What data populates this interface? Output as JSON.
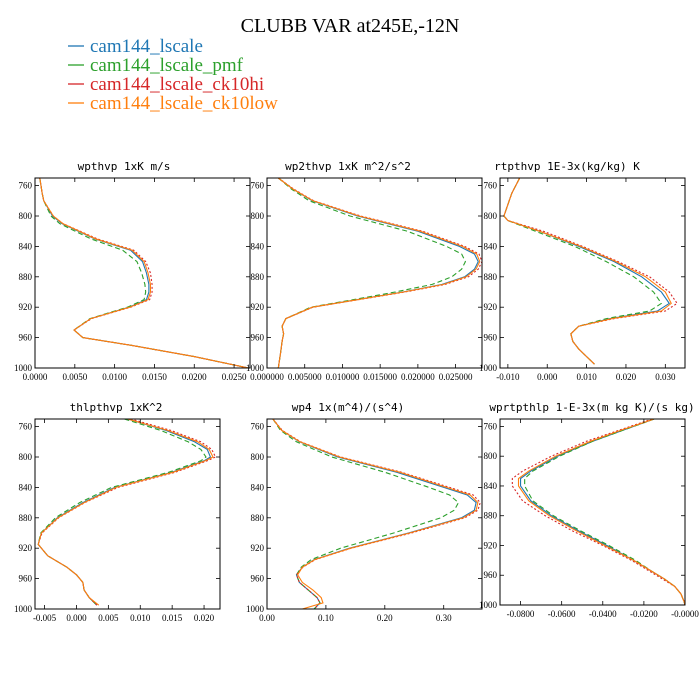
{
  "figure": {
    "title": "CLUBB VAR at245E,-12N"
  },
  "legend": [
    {
      "label": "cam144_lscale",
      "color": "#1f77b4",
      "dash": "solid"
    },
    {
      "label": "cam144_lscale_pmf",
      "color": "#2ca02c",
      "dash": "dashed"
    },
    {
      "label": "cam144_lscale_ck10hi",
      "color": "#d62728",
      "dash": "dotted"
    },
    {
      "label": "cam144_lscale_ck10low",
      "color": "#ff7f0e",
      "dash": "solid"
    }
  ],
  "chart_data": [
    {
      "type": "line",
      "title": "wpthvp  1xK m/s",
      "xlim": [
        0,
        0.027
      ],
      "ylim": [
        1000,
        750
      ],
      "y_reversed": true,
      "xticks": [
        0,
        0.005,
        0.01,
        0.015,
        0.02,
        0.025
      ],
      "xtick_labels": [
        "0.0000",
        "0.0050",
        "0.0100",
        "0.0150",
        "0.0200",
        "0.0250"
      ],
      "yticks": [
        760,
        800,
        840,
        880,
        920,
        960,
        1000
      ],
      "ytick_labels": [
        "760",
        "800",
        "840",
        "880",
        "920",
        "960",
        "1000"
      ],
      "y": [
        750,
        770,
        780,
        800,
        810,
        830,
        845,
        860,
        875,
        890,
        900,
        910,
        920,
        935,
        950,
        960,
        970,
        985,
        1000
      ],
      "series": [
        {
          "name": "cam144_lscale",
          "values": [
            0.0006,
            0.0009,
            0.0011,
            0.0022,
            0.0034,
            0.0075,
            0.012,
            0.0135,
            0.014,
            0.0143,
            0.0143,
            0.014,
            0.0118,
            0.007,
            0.0049,
            0.006,
            0.012,
            0.02,
            0.0268
          ]
        },
        {
          "name": "cam144_lscale_pmf",
          "values": [
            0.0006,
            0.0009,
            0.0011,
            0.002,
            0.0031,
            0.007,
            0.011,
            0.0128,
            0.0134,
            0.0138,
            0.0139,
            0.0137,
            0.0116,
            0.0069,
            0.0049,
            0.006,
            0.012,
            0.02,
            0.0268
          ]
        },
        {
          "name": "cam144_lscale_ck10hi",
          "values": [
            0.0006,
            0.0009,
            0.0011,
            0.0023,
            0.0035,
            0.0078,
            0.0124,
            0.0139,
            0.0145,
            0.0147,
            0.0147,
            0.0144,
            0.012,
            0.0071,
            0.0049,
            0.006,
            0.012,
            0.02,
            0.0268
          ]
        },
        {
          "name": "cam144_lscale_ck10low",
          "values": [
            0.0006,
            0.0009,
            0.0011,
            0.0023,
            0.0035,
            0.0076,
            0.0122,
            0.0137,
            0.0142,
            0.0145,
            0.0145,
            0.0142,
            0.0119,
            0.007,
            0.0049,
            0.006,
            0.012,
            0.02,
            0.0268
          ]
        }
      ]
    },
    {
      "type": "line",
      "title": "wp2thvp  1xK m^2/s^2",
      "xlim": [
        0,
        0.0285
      ],
      "ylim": [
        1000,
        750
      ],
      "y_reversed": true,
      "xticks": [
        0,
        0.005,
        0.01,
        0.015,
        0.02,
        0.025
      ],
      "xtick_labels": [
        "0.000000",
        "0.005000",
        "0.010000",
        "0.015000",
        "0.020000",
        "0.025000"
      ],
      "yticks": [
        760,
        800,
        840,
        880,
        920,
        960,
        1000
      ],
      "ytick_labels": [
        "760",
        "800",
        "840",
        "880",
        "920",
        "960",
        "1000"
      ],
      "y": [
        750,
        765,
        780,
        800,
        820,
        840,
        850,
        860,
        870,
        880,
        890,
        900,
        910,
        920,
        935,
        945,
        955,
        965,
        980,
        1000
      ],
      "series": [
        {
          "name": "cam144_lscale",
          "values": [
            0.0015,
            0.0035,
            0.006,
            0.012,
            0.02,
            0.0255,
            0.0275,
            0.028,
            0.0275,
            0.0262,
            0.0232,
            0.018,
            0.012,
            0.006,
            0.0025,
            0.002,
            0.0022,
            0.002,
            0.0018,
            0.0015
          ]
        },
        {
          "name": "cam144_lscale_pmf",
          "values": [
            0.0015,
            0.0033,
            0.0056,
            0.011,
            0.0186,
            0.0238,
            0.0258,
            0.0263,
            0.0258,
            0.0245,
            0.0219,
            0.017,
            0.0115,
            0.0058,
            0.0025,
            0.002,
            0.0022,
            0.002,
            0.0018,
            0.0015
          ]
        },
        {
          "name": "cam144_lscale_ck10hi",
          "values": [
            0.0015,
            0.0036,
            0.0062,
            0.0124,
            0.0206,
            0.0262,
            0.0281,
            0.0285,
            0.028,
            0.0267,
            0.0236,
            0.0183,
            0.0122,
            0.0061,
            0.0025,
            0.002,
            0.0022,
            0.002,
            0.0018,
            0.0015
          ]
        },
        {
          "name": "cam144_lscale_ck10low",
          "values": [
            0.0015,
            0.0035,
            0.0061,
            0.0122,
            0.0203,
            0.0259,
            0.0278,
            0.0282,
            0.0277,
            0.0264,
            0.0234,
            0.0181,
            0.0121,
            0.006,
            0.0025,
            0.002,
            0.0022,
            0.002,
            0.0018,
            0.0015
          ]
        }
      ]
    },
    {
      "type": "line",
      "title": "rtpthvp  1E-3x(kg/kg) K",
      "xlim": [
        -0.012,
        0.035
      ],
      "ylim": [
        1000,
        750
      ],
      "y_reversed": true,
      "xticks": [
        -0.01,
        0,
        0.01,
        0.02,
        0.03
      ],
      "xtick_labels": [
        "-0.010",
        "0.000",
        "0.010",
        "0.020",
        "0.030"
      ],
      "yticks": [
        760,
        800,
        840,
        880,
        920,
        960,
        1000
      ],
      "ytick_labels": [
        "760",
        "800",
        "840",
        "880",
        "920",
        "960",
        "1000"
      ],
      "y": [
        750,
        770,
        785,
        800,
        806,
        820,
        840,
        860,
        880,
        900,
        915,
        925,
        935,
        945,
        955,
        965,
        975,
        985,
        995
      ],
      "series": [
        {
          "name": "cam144_lscale",
          "values": [
            -0.007,
            -0.009,
            -0.01,
            -0.011,
            -0.01,
            -0.002,
            0.008,
            0.017,
            0.024,
            0.029,
            0.031,
            0.028,
            0.016,
            0.008,
            0.006,
            0.0065,
            0.008,
            0.01,
            0.012
          ]
        },
        {
          "name": "cam144_lscale_pmf",
          "values": [
            -0.007,
            -0.009,
            -0.01,
            -0.011,
            -0.01,
            -0.003,
            0.007,
            0.015,
            0.022,
            0.027,
            0.029,
            0.026,
            0.015,
            0.008,
            0.006,
            0.0065,
            0.008,
            0.01,
            0.012
          ]
        },
        {
          "name": "cam144_lscale_ck10hi",
          "values": [
            -0.007,
            -0.009,
            -0.01,
            -0.011,
            -0.01,
            -0.001,
            0.009,
            0.018,
            0.026,
            0.031,
            0.033,
            0.03,
            0.017,
            0.008,
            0.006,
            0.0065,
            0.008,
            0.01,
            0.012
          ]
        },
        {
          "name": "cam144_lscale_ck10low",
          "values": [
            -0.007,
            -0.009,
            -0.01,
            -0.011,
            -0.01,
            -0.002,
            0.0085,
            0.0175,
            0.025,
            0.03,
            0.0315,
            0.029,
            0.0165,
            0.008,
            0.006,
            0.0065,
            0.008,
            0.01,
            0.012
          ]
        }
      ]
    },
    {
      "type": "line",
      "title": "thlpthvp  1xK^2",
      "xlim": [
        -0.0065,
        0.0225
      ],
      "ylim": [
        1000,
        750
      ],
      "y_reversed": true,
      "xticks": [
        -0.005,
        0,
        0.005,
        0.01,
        0.015,
        0.02
      ],
      "xtick_labels": [
        "-0.005",
        "0.000",
        "0.005",
        "0.010",
        "0.015",
        "0.020"
      ],
      "yticks": [
        760,
        800,
        840,
        880,
        920,
        960,
        1000
      ],
      "ytick_labels": [
        "760",
        "800",
        "840",
        "880",
        "920",
        "960",
        "1000"
      ],
      "y": [
        750,
        765,
        780,
        790,
        800,
        805,
        820,
        840,
        860,
        880,
        900,
        915,
        930,
        945,
        955,
        965,
        975,
        985,
        995
      ],
      "series": [
        {
          "name": "cam144_lscale",
          "values": [
            0.008,
            0.014,
            0.0185,
            0.0205,
            0.021,
            0.02,
            0.015,
            0.006,
            0.001,
            -0.003,
            -0.0055,
            -0.006,
            -0.0045,
            -0.0015,
            0.0,
            0.001,
            0.0012,
            0.002,
            0.0032
          ]
        },
        {
          "name": "cam144_lscale_pmf",
          "values": [
            0.0075,
            0.0132,
            0.0175,
            0.0195,
            0.0203,
            0.0195,
            0.0145,
            0.0055,
            0.0005,
            -0.0033,
            -0.0056,
            -0.006,
            -0.0045,
            -0.0015,
            0.0,
            0.001,
            0.0012,
            0.002,
            0.0032
          ]
        },
        {
          "name": "cam144_lscale_ck10hi",
          "values": [
            0.0085,
            0.0148,
            0.0195,
            0.0212,
            0.0218,
            0.0205,
            0.0155,
            0.0065,
            0.0013,
            -0.0028,
            -0.0054,
            -0.006,
            -0.0045,
            -0.0015,
            0.0,
            0.001,
            0.0012,
            0.002,
            0.0032
          ]
        },
        {
          "name": "cam144_lscale_ck10low",
          "values": [
            0.008,
            0.0143,
            0.019,
            0.0208,
            0.0214,
            0.0202,
            0.0152,
            0.0062,
            0.0012,
            -0.0029,
            -0.0055,
            -0.006,
            -0.0045,
            -0.0015,
            0.0,
            0.001,
            0.0012,
            0.002,
            0.0035
          ]
        }
      ]
    },
    {
      "type": "line",
      "title": "wp4  1x(m^4)/(s^4)",
      "xlim": [
        0,
        0.365
      ],
      "ylim": [
        1000,
        750
      ],
      "y_reversed": true,
      "xticks": [
        0,
        0.1,
        0.2,
        0.3
      ],
      "xtick_labels": [
        "0.00",
        "0.10",
        "0.20",
        "0.30"
      ],
      "yticks": [
        760,
        800,
        840,
        880,
        920,
        960,
        1000
      ],
      "ytick_labels": [
        "760",
        "800",
        "840",
        "880",
        "920",
        "960",
        "1000"
      ],
      "y": [
        750,
        765,
        780,
        800,
        820,
        840,
        850,
        860,
        870,
        880,
        900,
        920,
        935,
        945,
        955,
        965,
        975,
        985,
        992,
        1000
      ],
      "series": [
        {
          "name": "cam144_lscale",
          "values": [
            0.01,
            0.025,
            0.055,
            0.12,
            0.22,
            0.3,
            0.34,
            0.355,
            0.352,
            0.33,
            0.24,
            0.14,
            0.08,
            0.06,
            0.05,
            0.055,
            0.07,
            0.085,
            0.09,
            0.08
          ]
        },
        {
          "name": "cam144_lscale_pmf",
          "values": [
            0.01,
            0.023,
            0.05,
            0.11,
            0.2,
            0.275,
            0.31,
            0.325,
            0.318,
            0.295,
            0.215,
            0.125,
            0.075,
            0.058,
            0.05,
            0.055,
            0.07,
            0.085,
            0.09,
            0.08
          ]
        },
        {
          "name": "cam144_lscale_ck10hi",
          "values": [
            0.01,
            0.026,
            0.057,
            0.125,
            0.228,
            0.31,
            0.35,
            0.362,
            0.358,
            0.336,
            0.245,
            0.143,
            0.082,
            0.061,
            0.05,
            0.055,
            0.07,
            0.085,
            0.09,
            0.08
          ]
        },
        {
          "name": "cam144_lscale_ck10low",
          "values": [
            0.01,
            0.025,
            0.056,
            0.123,
            0.225,
            0.305,
            0.345,
            0.358,
            0.355,
            0.333,
            0.242,
            0.142,
            0.081,
            0.06,
            0.052,
            0.06,
            0.078,
            0.092,
            0.095,
            0.06
          ]
        }
      ]
    },
    {
      "type": "line",
      "title": "wprtpthlp  1-E-3x(m kg K)/(s kg)",
      "xlim": [
        -0.09,
        0
      ],
      "ylim": [
        1000,
        750
      ],
      "y_reversed": true,
      "xticks": [
        -0.08,
        -0.06,
        -0.04,
        -0.02,
        0
      ],
      "xtick_labels": [
        "-0.0800",
        "-0.0600",
        "-0.0400",
        "-0.0200",
        "-0.0000"
      ],
      "yticks": [
        760,
        800,
        840,
        880,
        920,
        960,
        1000
      ],
      "ytick_labels": [
        "760",
        "800",
        "840",
        "880",
        "920",
        "960",
        "1000"
      ],
      "y": [
        750,
        765,
        780,
        800,
        820,
        830,
        840,
        860,
        880,
        900,
        920,
        940,
        955,
        965,
        975,
        985,
        995,
        1000
      ],
      "series": [
        {
          "name": "cam144_lscale",
          "values": [
            -0.015,
            -0.03,
            -0.045,
            -0.062,
            -0.075,
            -0.08,
            -0.08,
            -0.075,
            -0.065,
            -0.052,
            -0.038,
            -0.025,
            -0.016,
            -0.01,
            -0.005,
            -0.002,
            -0.0005,
            0
          ]
        },
        {
          "name": "cam144_lscale_pmf",
          "values": [
            -0.015,
            -0.03,
            -0.045,
            -0.061,
            -0.074,
            -0.078,
            -0.078,
            -0.074,
            -0.064,
            -0.051,
            -0.037,
            -0.024,
            -0.016,
            -0.01,
            -0.005,
            -0.002,
            -0.0005,
            0
          ]
        },
        {
          "name": "cam144_lscale_ck10hi",
          "values": [
            -0.016,
            -0.032,
            -0.048,
            -0.065,
            -0.079,
            -0.084,
            -0.084,
            -0.079,
            -0.068,
            -0.055,
            -0.04,
            -0.026,
            -0.017,
            -0.011,
            -0.005,
            -0.002,
            -0.0005,
            0
          ]
        },
        {
          "name": "cam144_lscale_ck10low",
          "values": [
            -0.015,
            -0.031,
            -0.046,
            -0.063,
            -0.076,
            -0.081,
            -0.081,
            -0.076,
            -0.066,
            -0.053,
            -0.039,
            -0.025,
            -0.016,
            -0.01,
            -0.005,
            -0.002,
            -0.0005,
            0
          ]
        }
      ]
    }
  ]
}
